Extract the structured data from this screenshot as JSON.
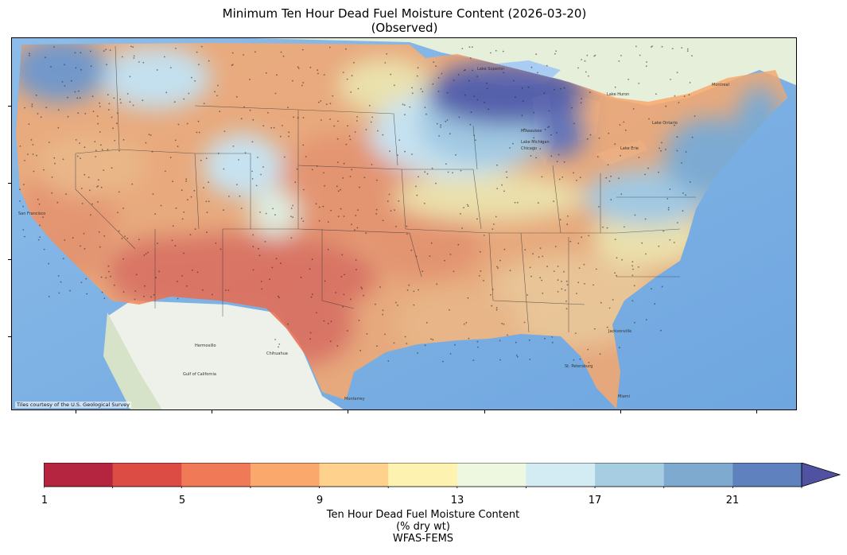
{
  "title": {
    "line1": "Minimum Ten Hour Dead Fuel Moisture Content (2026-03-20)",
    "line2": "(Observed)"
  },
  "map": {
    "attribution": "Tiles courtesy of the U.S. Geological Survey",
    "place_labels": [
      "San Francisco",
      "Milwaukee",
      "Chicago",
      "Lake Superior",
      "Lake Michigan",
      "Lake Huron",
      "Lake Erie",
      "Lake Ontario",
      "Montreal",
      "Chihuahua",
      "Hermosillo",
      "Monterrey",
      "Jacksonville",
      "Miami",
      "St. Petersburg",
      "Gulf of California"
    ],
    "colors": {
      "ocean": "#7fb3e6",
      "land_outside": "#eef2ea"
    }
  },
  "colorbar": {
    "ticks": [
      "1",
      "5",
      "9",
      "13",
      "17",
      "21"
    ],
    "colors": [
      "#b5253f",
      "#dd4b45",
      "#f07a58",
      "#faa86b",
      "#fed28d",
      "#fdf2b0",
      "#eef7df",
      "#d3ebf3",
      "#a7cde2",
      "#7eaacf",
      "#5f82be",
      "#5151a1"
    ],
    "extend": "max",
    "label_line1": "Ten Hour Dead Fuel Moisture Content",
    "label_line2": "(% dry wt)",
    "label_line3": "WFAS-FEMS"
  }
}
